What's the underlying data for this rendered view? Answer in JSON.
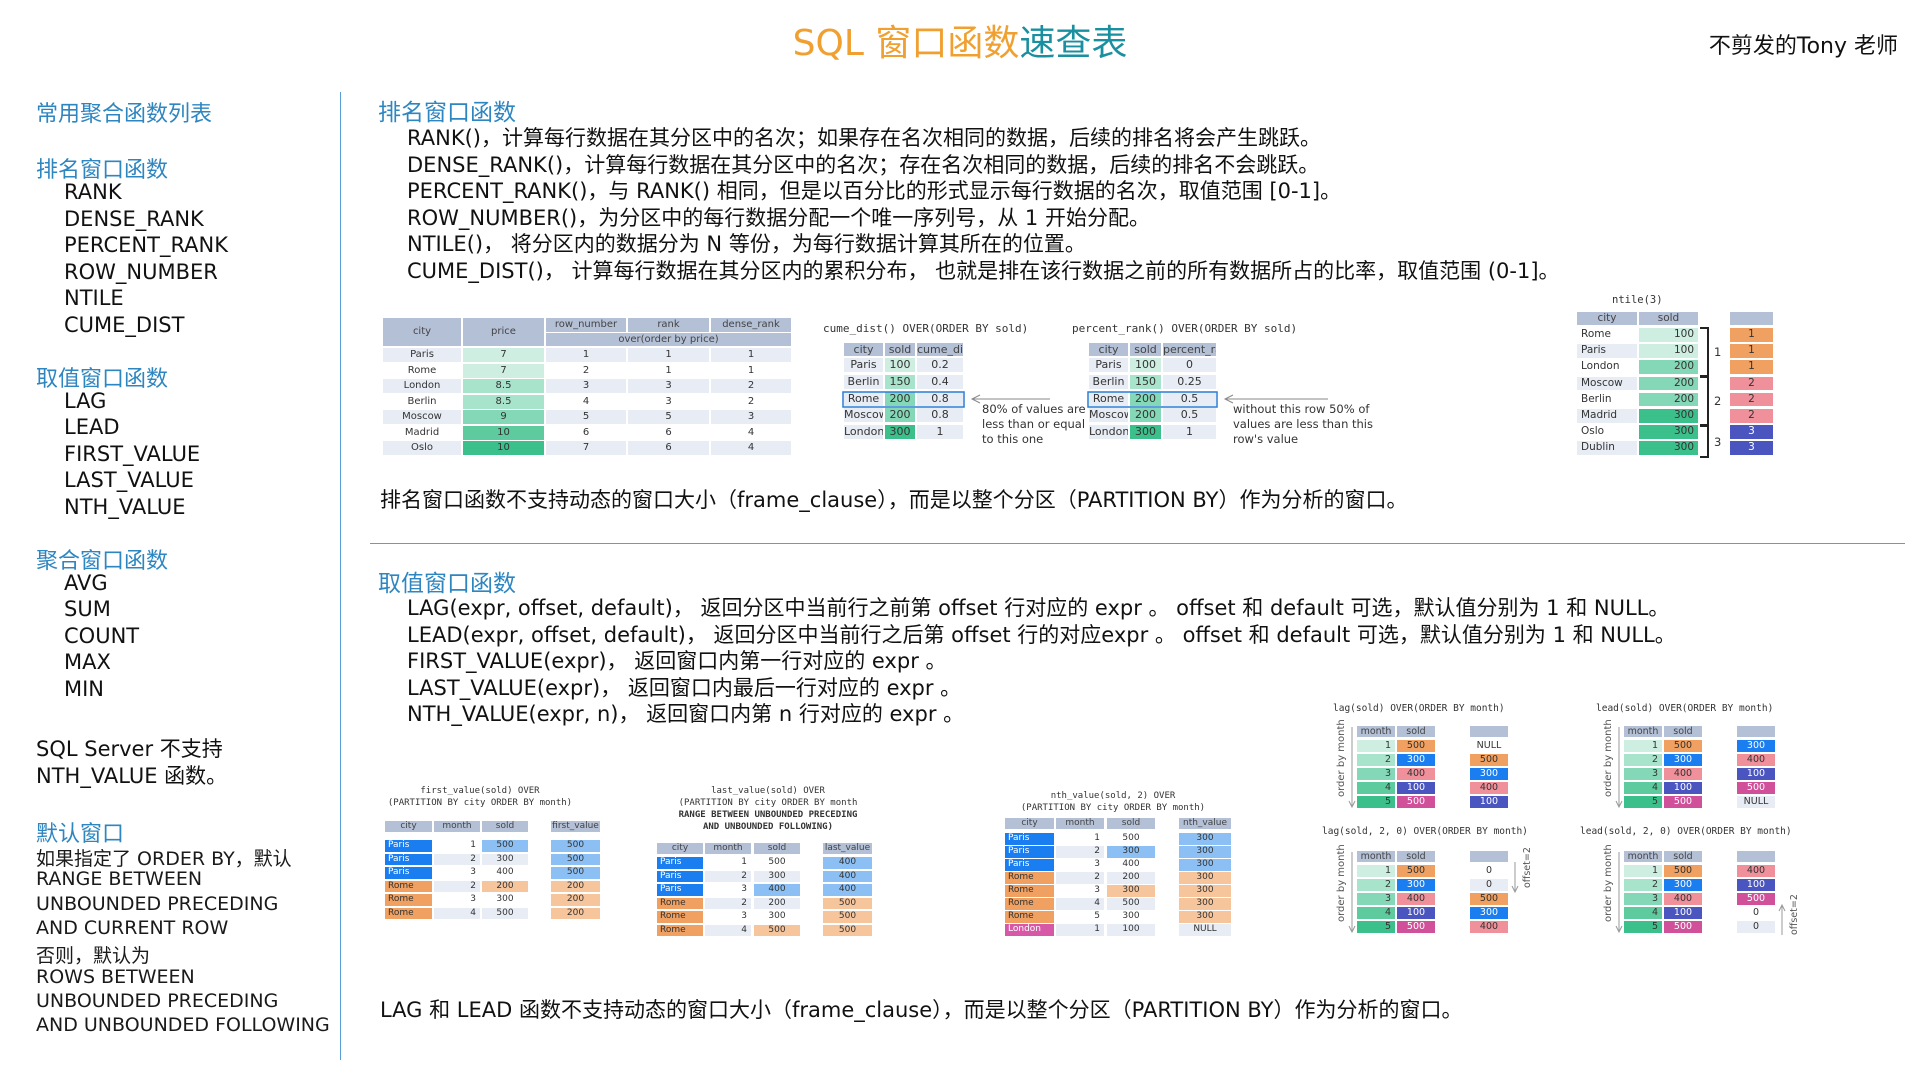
{
  "header": {
    "title_part1": "SQL 窗口函数",
    "title_part2": "速查表",
    "author": "不剪发的Tony 老师"
  },
  "colors": {
    "accent_orange": "#f0a030",
    "accent_teal": "#1a8fa0",
    "heading_blue": "#2e86c1",
    "palette": {
      "h": "#b4c0d6",
      "w": "#ffffff",
      "l": "#e8ecf4",
      "g1": "#cdeee0",
      "g2": "#a8e3cb",
      "g3": "#85d8b7",
      "g4": "#5ecb9e",
      "g5": "#3bc08b",
      "B": "#1a7df0",
      "b": "#8cc0f5",
      "O": "#f0a060",
      "o": "#f7c59c",
      "P": "#f0909a",
      "I": "#4a55c0",
      "M": "#d0509a",
      "L": "#d858a8"
    }
  },
  "sidebar": {
    "heading_aggregate": "常用聚合函数列表",
    "groups": [
      {
        "title": "排名窗口函数",
        "items": [
          "RANK",
          "DENSE_RANK",
          "PERCENT_RANK",
          "ROW_NUMBER",
          "NTILE",
          "CUME_DIST"
        ]
      },
      {
        "title": "取值窗口函数",
        "items": [
          "LAG",
          "LEAD",
          "FIRST_VALUE",
          "LAST_VALUE",
          "NTH_VALUE"
        ]
      },
      {
        "title": "聚合窗口函数",
        "items": [
          "AVG",
          "SUM",
          "COUNT",
          "MAX",
          "MIN"
        ]
      }
    ],
    "sqlserver_note": [
      "SQL Server 不支持",
      "NTH_VALUE 函数。"
    ],
    "default_window_title": "默认窗口",
    "default_window_lines": [
      "如果指定了 ORDER BY，默认",
      "RANGE BETWEEN",
      "UNBOUNDED PRECEDING",
      "AND CURRENT ROW",
      "否则，默认为",
      "ROWS BETWEEN",
      "UNBOUNDED PRECEDING",
      "AND UNBOUNDED FOLLOWING"
    ]
  },
  "ranking": {
    "title": "排名窗口函数",
    "lines": [
      "RANK()，计算每行数据在其分区中的名次；如果存在名次相同的数据，后续的排名将会产生跳跃。",
      "DENSE_RANK()，计算每行数据在其分区中的名次；存在名次相同的数据，后续的排名不会跳跃。",
      "PERCENT_RANK()，与 RANK() 相同，但是以百分比的形式显示每行数据的名次，取值范围 [0-1]。",
      "ROW_NUMBER()，为分区中的每行数据分配一个唯一序列号，从 1 开始分配。",
      "NTILE()， 将分区内的数据分为 N 等份，为每行数据计算其所在的位置。",
      "CUME_DIST()， 计算每行数据在其分区内的累积分布， 也就是排在该行数据之前的所有数据所占的比率，取值范围 (0-1]。"
    ],
    "note": "排名窗口函数不支持动态的窗口大小（frame_clause），而是以整个分区（PARTITION BY）作为分析的窗口。",
    "cume_note": [
      "80% of values are",
      "less than or equal",
      "to this one"
    ],
    "percent_note": [
      "without this row 50% of",
      "values are less than this",
      "row's value"
    ],
    "ntile_groups": [
      "1",
      "2",
      "3"
    ]
  },
  "value": {
    "title": "取值窗口函数",
    "lines": [
      "LAG(expr, offset, default)， 返回分区中当前行之前第 offset 行对应的 expr 。 offset 和 default 可选，默认值分别为 1 和 NULL。",
      "LEAD(expr, offset, default)， 返回分区中当前行之后第 offset 行的对应expr 。 offset 和 default 可选，默认值分别为 1 和 NULL。",
      "FIRST_VALUE(expr)， 返回窗口内第一行对应的 expr 。",
      "LAST_VALUE(expr)， 返回窗口内最后一行对应的 expr 。",
      "NTH_VALUE(expr, n)， 返回窗口内第 n 行对应的 expr 。"
    ],
    "note": "LAG 和 LEAD 函数不支持动态的窗口大小（frame_clause），而是以整个分区（PARTITION BY）作为分析的窗口。",
    "order_label": "order by month",
    "offset_label": "offset=2"
  },
  "tables": [
    {
      "title": [],
      "headers": [
        "city",
        "price",
        "row_number",
        "rank",
        "dense_rank"
      ],
      "subheader": "over(order by price)",
      "rows": [
        [
          "Paris",
          "7",
          "1",
          "1",
          "1"
        ],
        [
          "Rome",
          "7",
          "2",
          "1",
          "1"
        ],
        [
          "London",
          "8.5",
          "3",
          "3",
          "2"
        ],
        [
          "Berlin",
          "8.5",
          "4",
          "3",
          "2"
        ],
        [
          "Moscow",
          "9",
          "5",
          "5",
          "3"
        ],
        [
          "Madrid",
          "10",
          "6",
          "6",
          "4"
        ],
        [
          "Oslo",
          "10",
          "7",
          "6",
          "4"
        ]
      ],
      "colors": [
        [
          "l",
          "g1",
          "l",
          "l",
          "l"
        ],
        [
          "w",
          "g1",
          "w",
          "w",
          "w"
        ],
        [
          "l",
          "g2",
          "l",
          "l",
          "l"
        ],
        [
          "w",
          "g2",
          "w",
          "w",
          "w"
        ],
        [
          "l",
          "g3",
          "l",
          "l",
          "l"
        ],
        [
          "w",
          "g4",
          "w",
          "w",
          "w"
        ],
        [
          "l",
          "g5",
          "l",
          "l",
          "l"
        ]
      ]
    },
    {
      "title": [
        "cume_dist() OVER(ORDER BY sold)"
      ],
      "headers": [
        "city",
        "sold",
        "cume_dist"
      ],
      "rows": [
        [
          "Paris",
          "100",
          "0.2"
        ],
        [
          "Berlin",
          "150",
          "0.4"
        ],
        [
          "Rome",
          "200",
          "0.8"
        ],
        [
          "Moscow",
          "200",
          "0.8"
        ],
        [
          "London",
          "300",
          "1"
        ]
      ],
      "colors": [
        [
          "l",
          "g1",
          "l"
        ],
        [
          "l",
          "g2",
          "l"
        ],
        [
          "l",
          "g3",
          "l"
        ],
        [
          "l",
          "g3",
          "l"
        ],
        [
          "l",
          "g5",
          "l"
        ]
      ]
    },
    {
      "title": [
        "percent_rank() OVER(ORDER BY sold)"
      ],
      "headers": [
        "city",
        "sold",
        "percent_rank"
      ],
      "rows": [
        [
          "Paris",
          "100",
          "0"
        ],
        [
          "Berlin",
          "150",
          "0.25"
        ],
        [
          "Rome",
          "200",
          "0.5"
        ],
        [
          "Moscow",
          "200",
          "0.5"
        ],
        [
          "London",
          "300",
          "1"
        ]
      ],
      "colors": [
        [
          "l",
          "g1",
          "l"
        ],
        [
          "l",
          "g2",
          "l"
        ],
        [
          "l",
          "g3",
          "l"
        ],
        [
          "l",
          "g3",
          "l"
        ],
        [
          "l",
          "g5",
          "l"
        ]
      ]
    },
    {
      "title": [
        "ntile(3)"
      ],
      "headers": [
        "city",
        "sold",
        ""
      ],
      "rows": [
        [
          "Rome",
          "100",
          "1"
        ],
        [
          "Paris",
          "100",
          "1"
        ],
        [
          "London",
          "200",
          "1"
        ],
        [
          "Moscow",
          "200",
          "2"
        ],
        [
          "Berlin",
          "200",
          "2"
        ],
        [
          "Madrid",
          "300",
          "2"
        ],
        [
          "Oslo",
          "300",
          "3"
        ],
        [
          "Dublin",
          "300",
          "3"
        ]
      ],
      "colors": [
        [
          "w",
          "g1",
          "O"
        ],
        [
          "l",
          "g1",
          "O"
        ],
        [
          "w",
          "g3",
          "O"
        ],
        [
          "l",
          "g3",
          "P"
        ],
        [
          "w",
          "g3",
          "P"
        ],
        [
          "l",
          "g5",
          "P"
        ],
        [
          "w",
          "g5",
          "I"
        ],
        [
          "l",
          "g5",
          "I"
        ]
      ]
    },
    {
      "title": [
        "first_value(sold) OVER",
        "(PARTITION BY city ORDER BY month)"
      ],
      "headers": [
        "city",
        "month",
        "sold",
        "first_value"
      ],
      "rows": [
        [
          "Paris",
          "1",
          "500",
          "500"
        ],
        [
          "Paris",
          "2",
          "300",
          "500"
        ],
        [
          "Paris",
          "3",
          "400",
          "500"
        ],
        [
          "Rome",
          "2",
          "200",
          "200"
        ],
        [
          "Rome",
          "3",
          "300",
          "200"
        ],
        [
          "Rome",
          "4",
          "500",
          "200"
        ]
      ],
      "colors": [
        [
          "B",
          "w",
          "b",
          "b"
        ],
        [
          "B",
          "l",
          "l",
          "b"
        ],
        [
          "B",
          "w",
          "w",
          "b"
        ],
        [
          "O",
          "l",
          "o",
          "o"
        ],
        [
          "O",
          "w",
          "w",
          "o"
        ],
        [
          "O",
          "l",
          "l",
          "o"
        ]
      ]
    },
    {
      "title": [
        "last_value(sold) OVER",
        "(PARTITION BY city ORDER BY month",
        "RANGE BETWEEN UNBOUNDED PRECEDING",
        "AND UNBOUNDED FOLLOWING)"
      ],
      "headers": [
        "city",
        "month",
        "sold",
        "last_value"
      ],
      "rows": [
        [
          "Paris",
          "1",
          "500",
          "400"
        ],
        [
          "Paris",
          "2",
          "300",
          "400"
        ],
        [
          "Paris",
          "3",
          "400",
          "400"
        ],
        [
          "Rome",
          "2",
          "200",
          "500"
        ],
        [
          "Rome",
          "3",
          "300",
          "500"
        ],
        [
          "Rome",
          "4",
          "500",
          "500"
        ]
      ],
      "colors": [
        [
          "B",
          "w",
          "w",
          "b"
        ],
        [
          "B",
          "l",
          "l",
          "b"
        ],
        [
          "B",
          "w",
          "b",
          "b"
        ],
        [
          "O",
          "l",
          "l",
          "o"
        ],
        [
          "O",
          "w",
          "w",
          "o"
        ],
        [
          "O",
          "l",
          "o",
          "o"
        ]
      ]
    },
    {
      "title": [
        "nth_value(sold, 2) OVER",
        "(PARTITION BY city ORDER BY month)"
      ],
      "headers": [
        "city",
        "month",
        "sold",
        "nth_value"
      ],
      "rows": [
        [
          "Paris",
          "1",
          "500",
          "300"
        ],
        [
          "Paris",
          "2",
          "300",
          "300"
        ],
        [
          "Paris",
          "3",
          "400",
          "300"
        ],
        [
          "Rome",
          "2",
          "200",
          "300"
        ],
        [
          "Rome",
          "3",
          "300",
          "300"
        ],
        [
          "Rome",
          "4",
          "500",
          "300"
        ],
        [
          "Rome",
          "5",
          "300",
          "300"
        ],
        [
          "London",
          "1",
          "100",
          "NULL"
        ]
      ],
      "colors": [
        [
          "B",
          "w",
          "w",
          "b"
        ],
        [
          "B",
          "l",
          "b",
          "b"
        ],
        [
          "B",
          "w",
          "w",
          "b"
        ],
        [
          "O",
          "l",
          "l",
          "o"
        ],
        [
          "O",
          "w",
          "o",
          "o"
        ],
        [
          "O",
          "l",
          "l",
          "o"
        ],
        [
          "O",
          "w",
          "w",
          "o"
        ],
        [
          "L",
          "l",
          "l",
          "l"
        ]
      ]
    },
    {
      "title": [
        "lag(sold) OVER(ORDER BY month)"
      ],
      "headers": [
        "month",
        "sold",
        ""
      ],
      "rows": [
        [
          "1",
          "500",
          "NULL"
        ],
        [
          "2",
          "300",
          "500"
        ],
        [
          "3",
          "400",
          "300"
        ],
        [
          "4",
          "100",
          "400"
        ],
        [
          "5",
          "500",
          "100"
        ]
      ],
      "colors": [
        [
          "g1",
          "O",
          "w"
        ],
        [
          "g2",
          "B",
          "O"
        ],
        [
          "g3",
          "P",
          "B"
        ],
        [
          "g4",
          "I",
          "P"
        ],
        [
          "g5",
          "M",
          "I"
        ]
      ]
    },
    {
      "title": [
        "lag(sold, 2, 0) OVER(ORDER BY month)"
      ],
      "headers": [
        "month",
        "sold",
        ""
      ],
      "rows": [
        [
          "1",
          "500",
          "0"
        ],
        [
          "2",
          "300",
          "0"
        ],
        [
          "3",
          "400",
          "500"
        ],
        [
          "4",
          "100",
          "300"
        ],
        [
          "5",
          "500",
          "400"
        ]
      ],
      "colors": [
        [
          "g1",
          "O",
          "w"
        ],
        [
          "g2",
          "B",
          "l"
        ],
        [
          "g3",
          "P",
          "O"
        ],
        [
          "g4",
          "I",
          "B"
        ],
        [
          "g5",
          "M",
          "P"
        ]
      ]
    },
    {
      "title": [
        "lead(sold) OVER(ORDER BY month)"
      ],
      "headers": [
        "month",
        "sold",
        ""
      ],
      "rows": [
        [
          "1",
          "500",
          "300"
        ],
        [
          "2",
          "300",
          "400"
        ],
        [
          "3",
          "400",
          "100"
        ],
        [
          "4",
          "100",
          "500"
        ],
        [
          "5",
          "500",
          "NULL"
        ]
      ],
      "colors": [
        [
          "g1",
          "O",
          "B"
        ],
        [
          "g2",
          "B",
          "P"
        ],
        [
          "g3",
          "P",
          "I"
        ],
        [
          "g4",
          "I",
          "M"
        ],
        [
          "g5",
          "M",
          "l"
        ]
      ]
    },
    {
      "title": [
        "lead(sold, 2, 0) OVER(ORDER BY month)"
      ],
      "headers": [
        "month",
        "sold",
        ""
      ],
      "rows": [
        [
          "1",
          "500",
          "400"
        ],
        [
          "2",
          "300",
          "100"
        ],
        [
          "3",
          "400",
          "500"
        ],
        [
          "4",
          "100",
          "0"
        ],
        [
          "5",
          "500",
          "0"
        ]
      ],
      "colors": [
        [
          "g1",
          "O",
          "P"
        ],
        [
          "g2",
          "B",
          "I"
        ],
        [
          "g3",
          "P",
          "M"
        ],
        [
          "g4",
          "I",
          "w"
        ],
        [
          "g5",
          "M",
          "l"
        ]
      ]
    }
  ]
}
